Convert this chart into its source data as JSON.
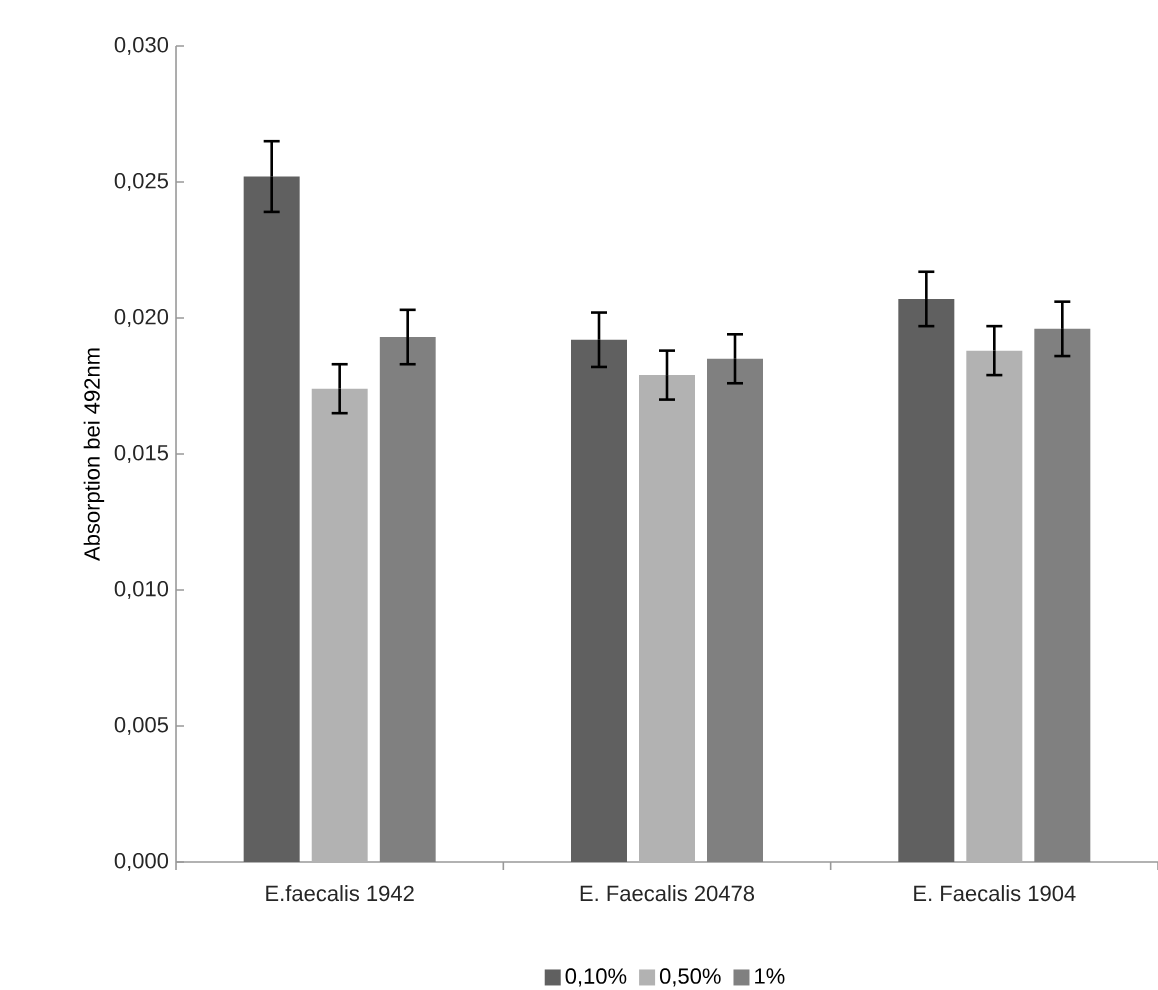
{
  "chart_data": {
    "type": "bar",
    "ylabel": "Absorption bei 492nm",
    "categories": [
      "E.faecalis 1942",
      "E. Faecalis 20478",
      "E. Faecalis 1904"
    ],
    "series": [
      {
        "name": "0,10%",
        "color": "#606060",
        "values": [
          0.0252,
          0.0192,
          0.0207
        ],
        "errors": [
          0.0013,
          0.001,
          0.001
        ]
      },
      {
        "name": "0,50%",
        "color": "#b2b2b2",
        "values": [
          0.0174,
          0.0179,
          0.0188
        ],
        "errors": [
          0.0009,
          0.0009,
          0.0009
        ]
      },
      {
        "name": "1%",
        "color": "#808080",
        "values": [
          0.0193,
          0.0185,
          0.0196
        ],
        "errors": [
          0.001,
          0.0009,
          0.001
        ]
      }
    ],
    "ylim": [
      0,
      0.03
    ],
    "yticks": [
      {
        "value": 0,
        "label": "0,000"
      },
      {
        "value": 0.005,
        "label": "0,005"
      },
      {
        "value": 0.01,
        "label": "0,010"
      },
      {
        "value": 0.015,
        "label": "0,015"
      },
      {
        "value": 0.02,
        "label": "0,020"
      },
      {
        "value": 0.025,
        "label": "0,025"
      },
      {
        "value": 0.03,
        "label": "0,030"
      }
    ],
    "grid": false,
    "legend": "bottom"
  }
}
